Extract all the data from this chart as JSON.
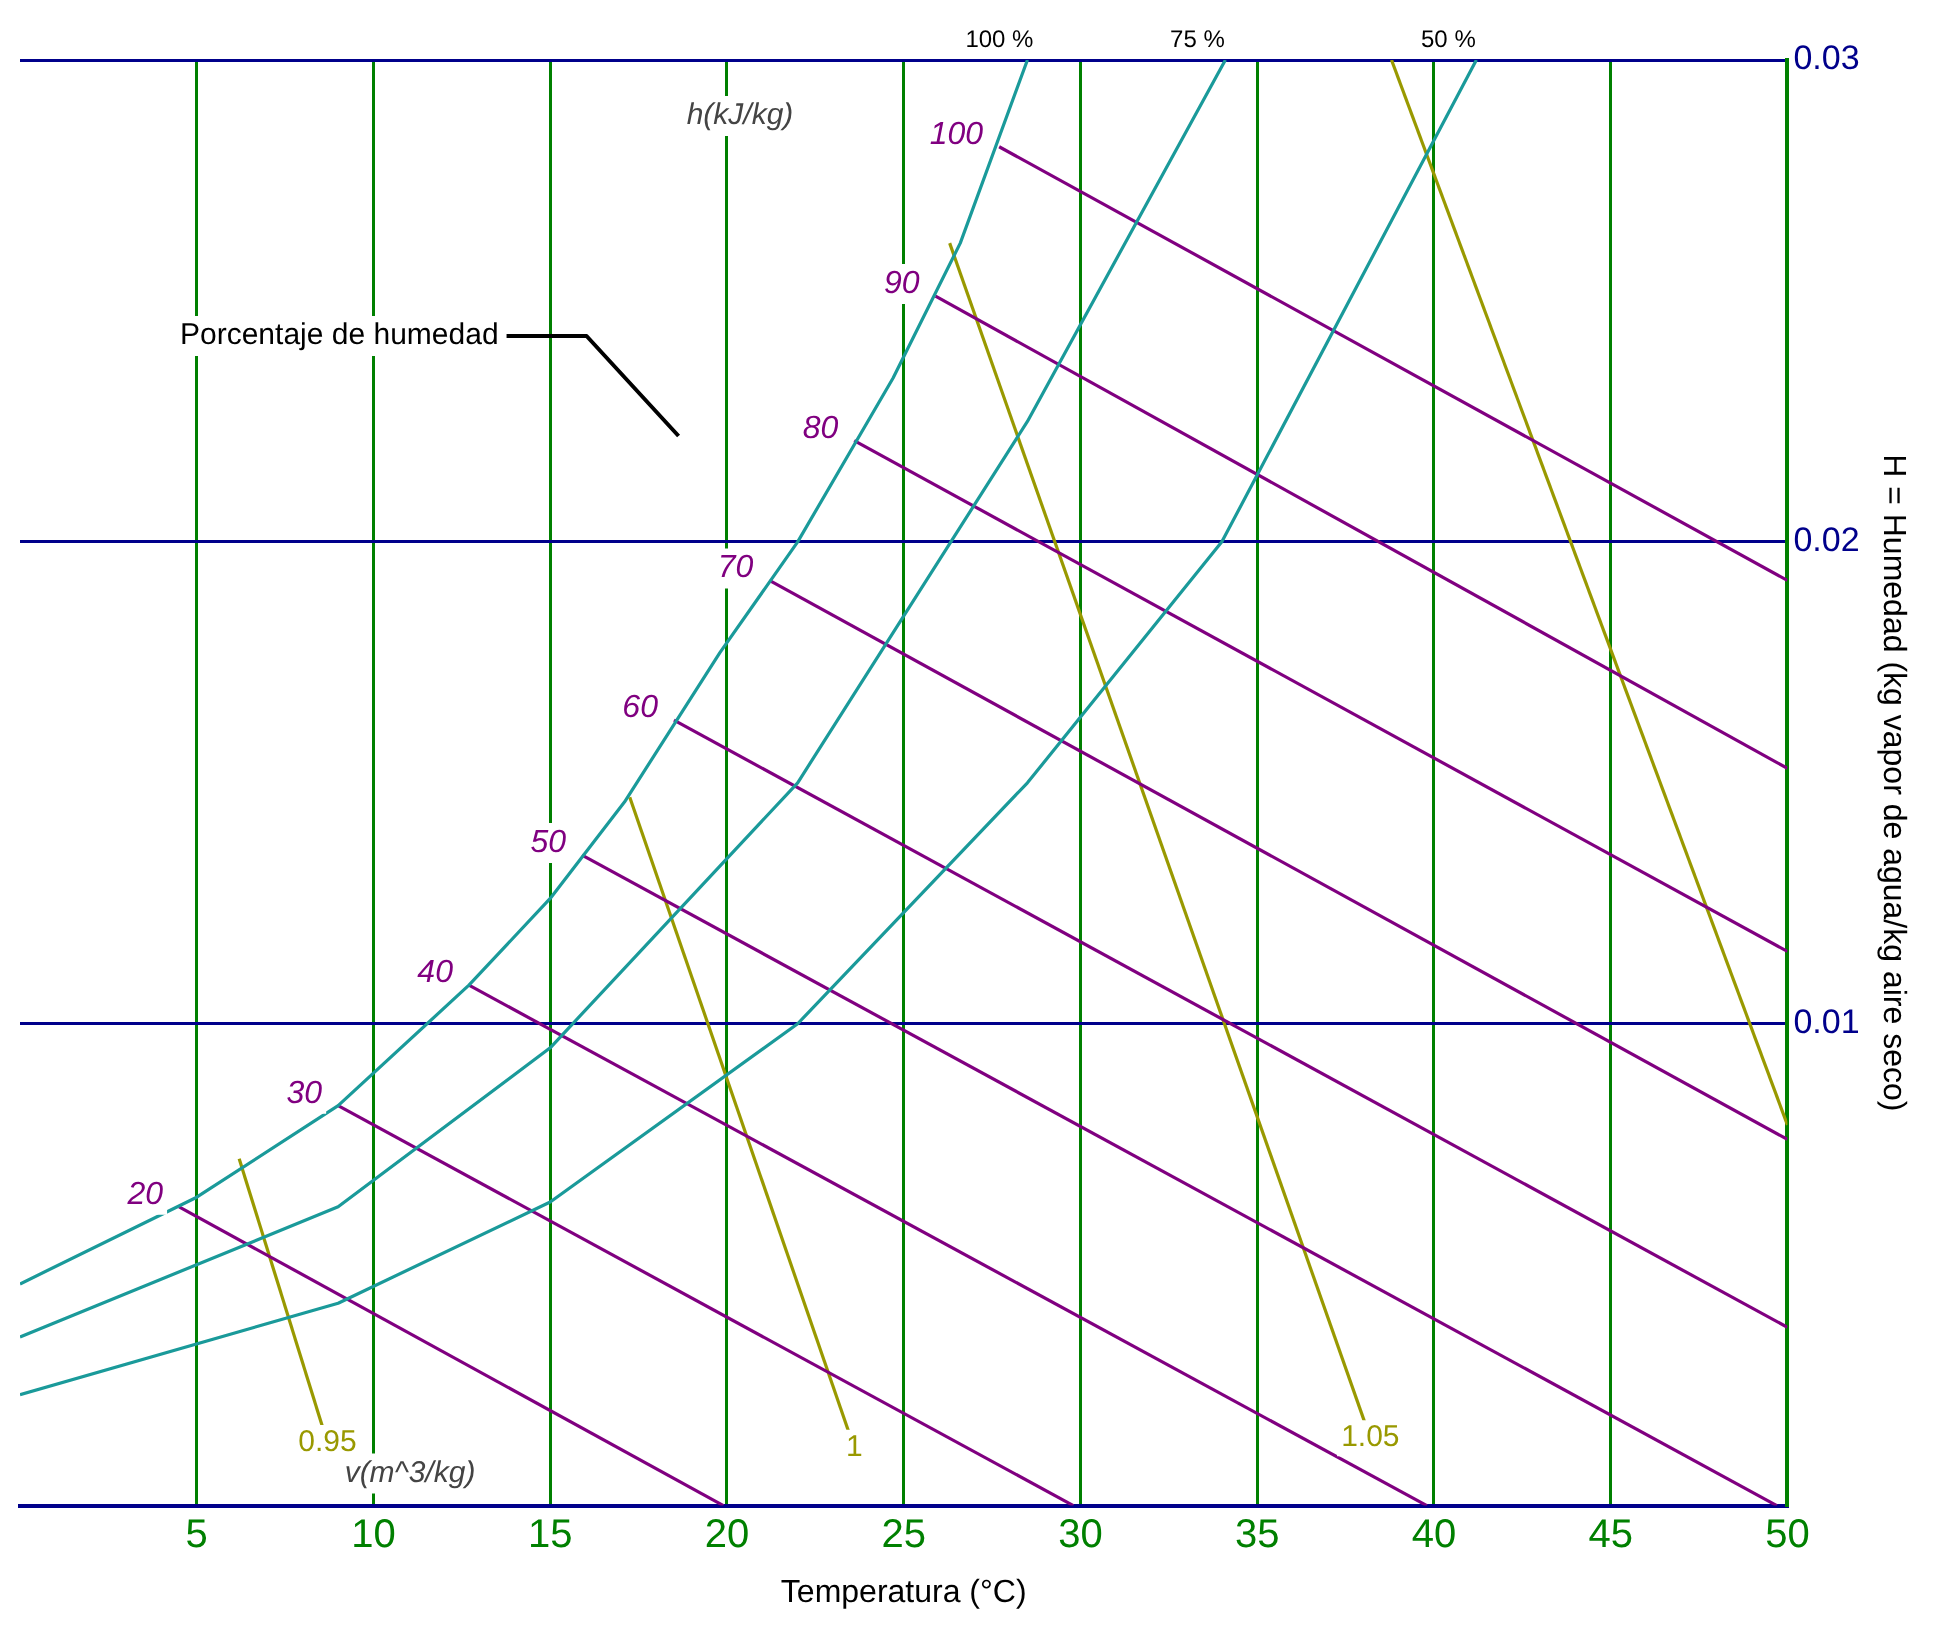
{
  "chart_data": {
    "type": "line",
    "xlabel": "Temperatura (°C)",
    "ylabel": "H = Humedad (kg vapor de agua/kg aire seco)",
    "xlim": [
      0,
      50
    ],
    "xticks": [
      5,
      10,
      15,
      20,
      25,
      30,
      35,
      40,
      45,
      50
    ],
    "ylim": [
      0,
      0.03
    ],
    "yticks": [
      0.01,
      0.02,
      0.03
    ],
    "grid": true,
    "annotations": [
      "Porcentaje de humedad",
      "h(kJ/kg)",
      "v(m^3/kg)"
    ],
    "series": [
      {
        "name": "100 %",
        "color": "#1a9a9a",
        "x": [
          28.5,
          26.6,
          24.7,
          22,
          19.8,
          17.1,
          15,
          12.7,
          9,
          5,
          0
        ],
        "values": [
          0.03,
          0.0262,
          0.0234,
          0.02,
          0.0177,
          0.0146,
          0.0126,
          0.0108,
          0.0083,
          0.0064,
          0.0046
        ]
      },
      {
        "name": "75 %",
        "color": "#1a9a9a",
        "x": [
          34.1,
          28.5,
          22,
          15,
          9,
          0
        ],
        "values": [
          0.03,
          0.0225,
          0.015,
          0.0095,
          0.0062,
          0.0035
        ]
      },
      {
        "name": "50 %",
        "color": "#1a9a9a",
        "x": [
          41.2,
          34,
          28.5,
          22,
          15,
          9,
          0
        ],
        "values": [
          0.03,
          0.02,
          0.015,
          0.01,
          0.0063,
          0.0042,
          0.0023
        ]
      },
      {
        "name": "20",
        "color": "#800080",
        "x": [
          4.5,
          19.9
        ],
        "values": [
          0.0062,
          0
        ]
      },
      {
        "name": "30",
        "color": "#800080",
        "x": [
          9,
          29.8
        ],
        "values": [
          0.0083,
          0
        ]
      },
      {
        "name": "40",
        "color": "#800080",
        "x": [
          12.7,
          39.8
        ],
        "values": [
          0.0108,
          0
        ]
      },
      {
        "name": "50",
        "color": "#800080",
        "x": [
          15.9,
          49.7
        ],
        "values": [
          0.0135,
          0
        ]
      },
      {
        "name": "60",
        "color": "#800080",
        "x": [
          18.5,
          50
        ],
        "values": [
          0.0163,
          0.0037
        ]
      },
      {
        "name": "70",
        "color": "#800080",
        "x": [
          21.2,
          50
        ],
        "values": [
          0.0192,
          0.0076
        ]
      },
      {
        "name": "80",
        "color": "#800080",
        "x": [
          23.6,
          50
        ],
        "values": [
          0.0221,
          0.0115
        ]
      },
      {
        "name": "90",
        "color": "#800080",
        "x": [
          25.9,
          50
        ],
        "values": [
          0.0251,
          0.0153
        ]
      },
      {
        "name": "100",
        "color": "#800080",
        "x": [
          27.7,
          50
        ],
        "values": [
          0.0282,
          0.0192
        ]
      },
      {
        "name": "0.95",
        "color": "#999900",
        "x": [
          8.7,
          6.2
        ],
        "values": [
          0.0013,
          0.0072
        ]
      },
      {
        "name": "1",
        "color": "#999900",
        "x": [
          23.6,
          17.25
        ],
        "values": [
          0.0012,
          0.0147
        ]
      },
      {
        "name": "1.05",
        "color": "#999900",
        "x": [
          38.2,
          26.3
        ],
        "values": [
          0.0014,
          0.0262
        ]
      },
      {
        "color": "#999900",
        "x": [
          50,
          38.8
        ],
        "values": [
          0.0079,
          0.03
        ]
      }
    ]
  }
}
